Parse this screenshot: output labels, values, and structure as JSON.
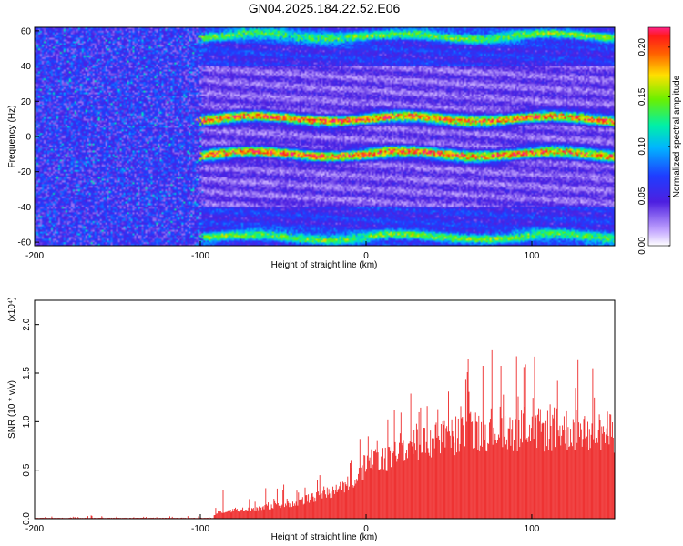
{
  "title": "GN04.2025.184.22.52.E06",
  "chart_data": [
    {
      "type": "heatmap",
      "xlabel": "Height of straight line (km)",
      "ylabel": "Frequency (Hz)",
      "xlim": [
        -200,
        150
      ],
      "ylim": [
        -62,
        62
      ],
      "xticks": [
        "-200",
        "-100",
        "0",
        "100"
      ],
      "yticks": [
        "60",
        "40",
        "20",
        "0",
        "-20",
        "-40",
        "-60"
      ],
      "colorbar": {
        "label": "Normalized spectral amplitude",
        "range": [
          0.0,
          0.22
        ],
        "ticks": [
          "0.00",
          "0.05",
          "0.10",
          "0.15",
          "0.20"
        ]
      },
      "features": {
        "onset_height_km": -100,
        "bands_hz": [
          {
            "center": 10,
            "peak": 0.2,
            "from_km": -100,
            "to_km": 150
          },
          {
            "center": -10,
            "peak": 0.2,
            "from_km": -100,
            "to_km": 150
          },
          {
            "center": 57,
            "peak": 0.1,
            "from_km": -100,
            "to_km": 150
          },
          {
            "center": -57,
            "peak": 0.1,
            "from_km": -100,
            "to_km": 150
          }
        ],
        "background_level": 0.05
      }
    },
    {
      "type": "bar",
      "xlabel": "Height of straight line (km)",
      "ylabel": "SNR (10 * v/v)",
      "scale_label": "(x10⁴)",
      "xlim": [
        -200,
        150
      ],
      "ylim": [
        0,
        22500
      ],
      "xticks": [
        "-200",
        "-100",
        "0",
        "100"
      ],
      "yticks": [
        "0.0",
        "0.5",
        "1.0",
        "1.5",
        "2.0"
      ],
      "series": [
        {
          "color": "#ee2a2a",
          "envelope_x": [
            -200,
            -92,
            -90,
            -70,
            -50,
            -30,
            -10,
            0,
            20,
            40,
            60,
            80,
            100,
            120,
            150
          ],
          "envelope_max": [
            300,
            300,
            2500,
            2800,
            3600,
            4800,
            7000,
            9500,
            12000,
            15000,
            17000,
            18000,
            17000,
            17500,
            16000
          ],
          "envelope_fill": [
            80,
            80,
            700,
            1000,
            1400,
            2200,
            3600,
            5500,
            7000,
            8000,
            8800,
            9400,
            9000,
            9200,
            8800
          ]
        }
      ]
    }
  ]
}
